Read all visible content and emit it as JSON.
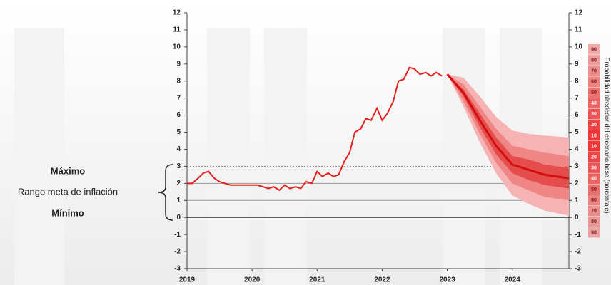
{
  "chart_data": {
    "type": "fan",
    "xlim": [
      2019,
      2024.87
    ],
    "xticks": [
      2019,
      2020,
      2021,
      2022,
      2023,
      2024
    ],
    "ylim": [
      -3,
      12
    ],
    "yticks": [
      -3,
      -2,
      -1,
      0,
      1,
      2,
      3,
      4,
      5,
      6,
      7,
      8,
      9,
      10,
      11,
      12
    ],
    "y2lim": [
      -3,
      12
    ],
    "y2ticks": [
      -3,
      -2,
      -1,
      0,
      1,
      2,
      3,
      4,
      5,
      6,
      7,
      8,
      9,
      10,
      11,
      12
    ],
    "target": {
      "max": 3,
      "min": 1,
      "mid": 2,
      "max_label": "Máximo",
      "range_label": "Rango meta de inflación",
      "min_label": "Mínimo"
    },
    "series": [
      {
        "color": "#e3201b",
        "x": [
          2019.0,
          2019.08,
          2019.17,
          2019.25,
          2019.33,
          2019.42,
          2019.5,
          2019.58,
          2019.67,
          2019.75,
          2019.83,
          2019.92,
          2020.0,
          2020.08,
          2020.17,
          2020.25,
          2020.33,
          2020.42,
          2020.5,
          2020.58,
          2020.67,
          2020.75,
          2020.83,
          2020.92,
          2021.0,
          2021.08,
          2021.17,
          2021.25,
          2021.33,
          2021.42,
          2021.5,
          2021.58,
          2021.67,
          2021.75,
          2021.83,
          2021.92,
          2022.0,
          2022.08,
          2022.17,
          2022.25,
          2022.33,
          2022.42,
          2022.5,
          2022.58,
          2022.67,
          2022.75,
          2022.83,
          2022.92
        ],
        "values": [
          2.0,
          2.0,
          2.3,
          2.6,
          2.7,
          2.3,
          2.1,
          2.0,
          1.9,
          1.9,
          1.9,
          1.9,
          1.9,
          1.9,
          1.8,
          1.7,
          1.8,
          1.6,
          1.9,
          1.7,
          1.8,
          1.7,
          2.1,
          2.0,
          2.7,
          2.4,
          2.6,
          2.4,
          2.5,
          3.3,
          3.8,
          5.0,
          5.2,
          5.8,
          5.7,
          6.4,
          5.7,
          6.1,
          6.8,
          8.0,
          8.1,
          8.8,
          8.7,
          8.4,
          8.5,
          8.3,
          8.5,
          8.3
        ]
      },
      {
        "color": "#d40d0d",
        "x": [
          2023.0,
          2023.25,
          2023.5,
          2023.75,
          2024.0,
          2024.25,
          2024.5,
          2024.87
        ],
        "values": [
          8.4,
          7.3,
          5.7,
          4.2,
          3.1,
          2.8,
          2.5,
          2.3
        ]
      }
    ],
    "fan_x": [
      2023.0,
      2023.25,
      2023.5,
      2023.75,
      2024.0,
      2024.25,
      2024.5,
      2024.87
    ],
    "fan": [
      {
        "color": "#f6b3b3",
        "upper": [
          8.4,
          8.2,
          7.1,
          5.9,
          5.1,
          4.9,
          4.8,
          4.7
        ],
        "lower": [
          8.4,
          6.5,
          4.4,
          2.6,
          1.3,
          0.8,
          0.4,
          0.1
        ]
      },
      {
        "color": "#ef8585",
        "upper": [
          8.4,
          7.8,
          6.5,
          5.2,
          4.2,
          4.0,
          3.8,
          3.6
        ],
        "lower": [
          8.4,
          6.8,
          4.9,
          3.2,
          2.0,
          1.6,
          1.2,
          1.0
        ]
      },
      {
        "color": "#e54d4d",
        "upper": [
          8.4,
          7.5,
          6.1,
          4.7,
          3.6,
          3.4,
          3.1,
          2.9
        ],
        "lower": [
          8.4,
          7.1,
          5.3,
          3.7,
          2.6,
          2.2,
          1.9,
          1.7
        ]
      }
    ],
    "probability_title": "Probabilidad alrededor del escenario base (porcentaje)",
    "probability_scale": [
      90,
      80,
      70,
      60,
      50,
      40,
      30,
      20,
      10,
      10,
      20,
      30,
      40,
      50,
      60,
      70,
      80,
      90
    ]
  }
}
